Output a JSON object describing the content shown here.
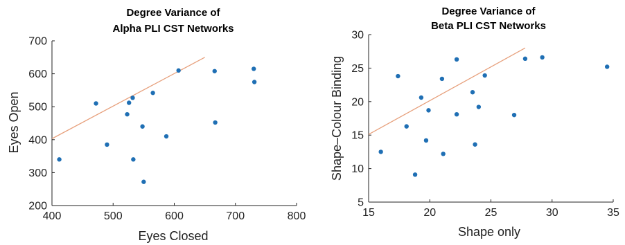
{
  "colors": {
    "point": "#1f6fb4",
    "fit_line": "#e7a07c",
    "axis": "#222222"
  },
  "chart_data": [
    {
      "type": "scatter",
      "title": [
        "Degree Variance of",
        "Alpha PLI CST Networks"
      ],
      "xlabel": "Eyes Closed",
      "ylabel": "Eyes Open",
      "xlim": [
        400,
        800
      ],
      "ylim": [
        200,
        700
      ],
      "xticks": [
        400,
        500,
        600,
        700,
        800
      ],
      "yticks": [
        200,
        300,
        400,
        500,
        600,
        700
      ],
      "grid": false,
      "points": [
        {
          "x": 412,
          "y": 340
        },
        {
          "x": 472,
          "y": 510
        },
        {
          "x": 490,
          "y": 385
        },
        {
          "x": 523,
          "y": 477
        },
        {
          "x": 526,
          "y": 512
        },
        {
          "x": 532,
          "y": 527
        },
        {
          "x": 533,
          "y": 340
        },
        {
          "x": 548,
          "y": 440
        },
        {
          "x": 550,
          "y": 272
        },
        {
          "x": 565,
          "y": 542
        },
        {
          "x": 587,
          "y": 410
        },
        {
          "x": 607,
          "y": 610
        },
        {
          "x": 666,
          "y": 608
        },
        {
          "x": 667,
          "y": 452
        },
        {
          "x": 730,
          "y": 615
        },
        {
          "x": 731,
          "y": 575
        }
      ],
      "fit_line": [
        {
          "x": 400,
          "y": 403
        },
        {
          "x": 650,
          "y": 650
        }
      ]
    },
    {
      "type": "scatter",
      "title": [
        "Degree Variance of",
        "Beta PLI CST Networks"
      ],
      "xlabel": "Shape only",
      "ylabel": "Shape–Colour Binding",
      "xlim": [
        15,
        35
      ],
      "ylim": [
        5,
        30
      ],
      "xticks": [
        15,
        20,
        25,
        30,
        35
      ],
      "yticks": [
        5,
        10,
        15,
        20,
        25,
        30
      ],
      "grid": false,
      "points": [
        {
          "x": 16.0,
          "y": 12.5
        },
        {
          "x": 17.4,
          "y": 23.8
        },
        {
          "x": 18.1,
          "y": 16.3
        },
        {
          "x": 18.8,
          "y": 9.1
        },
        {
          "x": 19.3,
          "y": 20.6
        },
        {
          "x": 19.7,
          "y": 14.2
        },
        {
          "x": 19.9,
          "y": 18.7
        },
        {
          "x": 21.0,
          "y": 23.4
        },
        {
          "x": 21.1,
          "y": 12.2
        },
        {
          "x": 22.2,
          "y": 26.3
        },
        {
          "x": 22.2,
          "y": 18.1
        },
        {
          "x": 23.5,
          "y": 21.4
        },
        {
          "x": 23.7,
          "y": 13.6
        },
        {
          "x": 24.0,
          "y": 19.2
        },
        {
          "x": 24.5,
          "y": 23.9
        },
        {
          "x": 26.9,
          "y": 18.0
        },
        {
          "x": 27.8,
          "y": 26.4
        },
        {
          "x": 29.2,
          "y": 26.6
        },
        {
          "x": 34.5,
          "y": 25.2
        }
      ],
      "fit_line": [
        {
          "x": 15,
          "y": 15.1
        },
        {
          "x": 27.8,
          "y": 28.0
        }
      ]
    }
  ]
}
